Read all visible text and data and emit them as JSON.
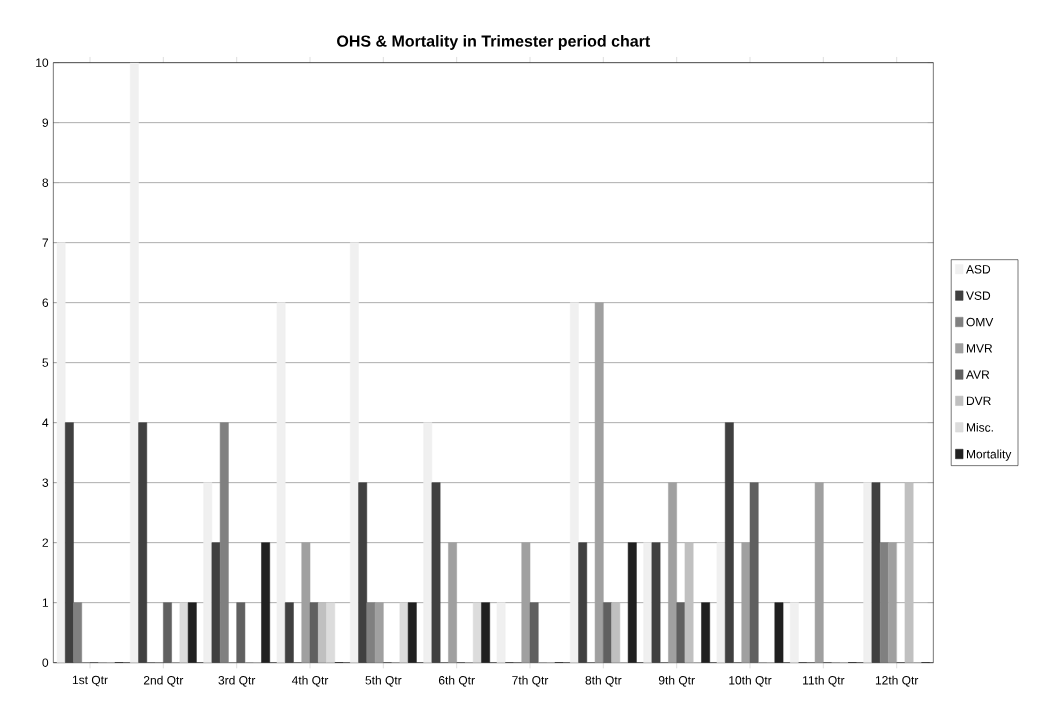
{
  "chart_data": {
    "type": "bar",
    "title": "OHS & Mortality in Trimester period chart",
    "categories": [
      "1st Qtr",
      "2nd Qtr",
      "3rd Qtr",
      "4th Qtr",
      "5th Qtr",
      "6th Qtr",
      "7th Qtr",
      "8th Qtr",
      "9th Qtr",
      "10th Qtr",
      "11th Qtr",
      "12th Qtr"
    ],
    "series": [
      {
        "name": "ASD",
        "color": "#f0f0f0",
        "values": [
          7,
          10,
          3,
          6,
          7,
          4,
          1,
          6,
          2,
          2,
          1,
          3
        ]
      },
      {
        "name": "VSD",
        "color": "#404040",
        "values": [
          4,
          4,
          2,
          1,
          3,
          3,
          0,
          2,
          2,
          4,
          0,
          3
        ]
      },
      {
        "name": "OMV",
        "color": "#808080",
        "values": [
          1,
          0,
          4,
          0,
          1,
          0,
          0,
          0,
          0,
          0,
          0,
          2
        ]
      },
      {
        "name": "MVR",
        "color": "#a0a0a0",
        "values": [
          0,
          0,
          0,
          2,
          1,
          2,
          2,
          6,
          3,
          2,
          3,
          2
        ]
      },
      {
        "name": "AVR",
        "color": "#606060",
        "values": [
          0,
          1,
          1,
          1,
          0,
          0,
          1,
          1,
          1,
          3,
          0,
          0
        ]
      },
      {
        "name": "DVR",
        "color": "#c0c0c0",
        "values": [
          0,
          0,
          0,
          1,
          0,
          0,
          0,
          1,
          2,
          0,
          0,
          3
        ]
      },
      {
        "name": "Misc.",
        "color": "#dcdcdc",
        "values": [
          0,
          1,
          0,
          1,
          1,
          1,
          0,
          0,
          0,
          0,
          0,
          0
        ]
      },
      {
        "name": "Mortality",
        "color": "#202020",
        "values": [
          0,
          1,
          2,
          0,
          1,
          1,
          0,
          2,
          1,
          1,
          0,
          0
        ]
      }
    ],
    "ylim": [
      0,
      10
    ],
    "yticks": [
      0,
      1,
      2,
      3,
      4,
      5,
      6,
      7,
      8,
      9,
      10
    ],
    "grid": "y",
    "legend": "right"
  }
}
